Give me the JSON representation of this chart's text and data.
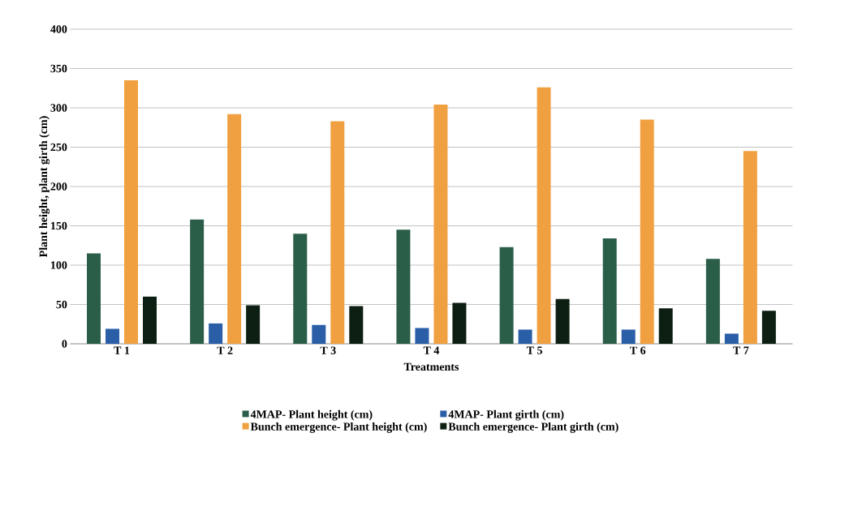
{
  "chart_data": {
    "type": "bar",
    "xlabel": "Treatments",
    "ylabel": "Plant height, plant girth (cm)",
    "categories": [
      "T 1",
      "T 2",
      "T 3",
      "T 4",
      "T 5",
      "T 6",
      "T 7"
    ],
    "series": [
      {
        "name": "4MAP- Plant height (cm)",
        "color": "#2b5e48",
        "values": [
          115,
          158,
          140,
          145,
          123,
          134,
          108
        ]
      },
      {
        "name": "4MAP- Plant girth (cm)",
        "color": "#2a5fa8",
        "values": [
          19,
          26,
          24,
          20,
          18,
          18,
          13
        ]
      },
      {
        "name": "Bunch emergence- Plant height (cm)",
        "color": "#f0a040",
        "values": [
          335,
          292,
          283,
          304,
          326,
          285,
          245
        ]
      },
      {
        "name": "Bunch emergence- Plant girth (cm)",
        "color": "#0d1f12",
        "values": [
          60,
          49,
          48,
          52,
          57,
          45,
          42
        ]
      }
    ],
    "ylim": [
      0,
      400
    ],
    "yticks": [
      0,
      50,
      100,
      150,
      200,
      250,
      300,
      350,
      400
    ],
    "grid": "y",
    "legend": "bottom"
  }
}
